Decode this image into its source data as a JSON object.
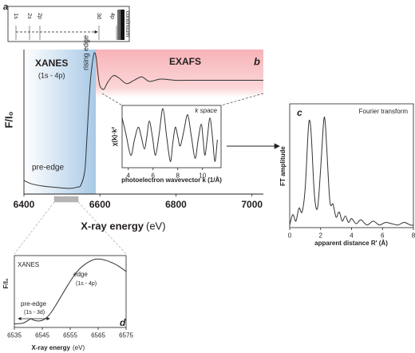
{
  "panel_a": {
    "label": "a",
    "levels": [
      "1s",
      "2s",
      "2p",
      "3d",
      "4p",
      "continuum"
    ]
  },
  "chart_data": [
    {
      "type": "line",
      "panel_label": "b",
      "xlabel": "X-ray energy",
      "xunit": "(eV)",
      "ylabel": "F/I₀",
      "annotations": [
        "XANES",
        "(1s - 4p)",
        "rising edge",
        "pre-edge",
        "EXAFS"
      ],
      "x": [
        6400,
        6420,
        6450,
        6480,
        6520,
        6540,
        6550,
        6560,
        6565,
        6570,
        6575,
        6580,
        6585,
        6590,
        6595,
        6600,
        6610,
        6620,
        6635,
        6650,
        6670,
        6690,
        6710,
        6730,
        6760,
        6800,
        6850,
        6900,
        6950,
        7000,
        7030
      ],
      "values": [
        0.12,
        0.09,
        0.07,
        0.06,
        0.05,
        0.06,
        0.08,
        0.2,
        0.45,
        0.75,
        1.0,
        1.15,
        1.24,
        1.2,
        1.05,
        0.95,
        0.92,
        0.98,
        1.04,
        1.02,
        0.97,
        1.0,
        1.03,
        0.99,
        1.01,
        1.0,
        1.0,
        1.0,
        1.0,
        1.0,
        1.0
      ],
      "color": "#333333",
      "xlim": [
        6400,
        7030
      ],
      "xticks": [
        6400,
        6600,
        6800,
        7000
      ],
      "ylim": [
        0,
        1.27
      ]
    },
    {
      "type": "line",
      "title": "k space",
      "xlabel": "photoelectron wavevector k (1/Å)",
      "ylabel": "χ(k)·k²",
      "x": [
        3.5,
        3.8,
        4.2,
        4.5,
        4.8,
        5.05,
        5.3,
        5.5,
        5.7,
        5.95,
        6.2,
        6.5,
        6.8,
        7.1,
        7.4,
        7.6,
        7.8,
        8.0,
        8.2,
        8.5,
        8.8,
        9.1,
        9.4,
        9.65,
        9.9,
        10.05,
        10.2,
        10.4,
        10.6,
        10.8,
        11.0,
        11.2
      ],
      "values": [
        0.6,
        0.1,
        -0.6,
        -0.1,
        0.3,
        0,
        -0.4,
        0,
        0.5,
        0,
        -0.6,
        0.1,
        0.9,
        0,
        -0.8,
        -0.2,
        0.3,
        0,
        -0.3,
        0.2,
        0.7,
        0,
        -0.7,
        -0.1,
        0.4,
        -0.1,
        -0.6,
        0,
        0.6,
        0,
        -0.8,
        -0.1
      ],
      "color": "#333333",
      "xlim": [
        3.5,
        11.5
      ],
      "xticks": [
        4,
        6,
        8,
        10
      ],
      "ylim": [
        -1,
        1
      ]
    },
    {
      "type": "line",
      "panel_label": "c",
      "title": "Fourier transform",
      "xlabel": "apparent distance R′ (Å)",
      "ylabel": "FT amplitude",
      "x": [
        0,
        0.2,
        0.4,
        0.6,
        0.8,
        1.0,
        1.2,
        1.3,
        1.4,
        1.6,
        1.8,
        2.0,
        2.2,
        2.3,
        2.4,
        2.6,
        2.8,
        3.0,
        3.2,
        3.4,
        3.6,
        3.8,
        4.0,
        4.3,
        4.6,
        5.0,
        5.4,
        5.8,
        6.2,
        6.6,
        7.0,
        7.4,
        7.8,
        8.0
      ],
      "values": [
        0.02,
        0.1,
        0.05,
        0.15,
        0.12,
        0.3,
        0.75,
        0.82,
        0.7,
        0.25,
        0.15,
        0.45,
        0.82,
        0.8,
        0.6,
        0.2,
        0.18,
        0.08,
        0.12,
        0.05,
        0.09,
        0.04,
        0.07,
        0.03,
        0.06,
        0.02,
        0.05,
        0.02,
        0.04,
        0.03,
        0.02,
        0.04,
        0.02,
        0.02
      ],
      "color": "#333333",
      "xlim": [
        0,
        8
      ],
      "xticks": [
        0,
        2,
        4,
        6,
        8
      ],
      "ylim": [
        0,
        0.95
      ]
    },
    {
      "type": "line",
      "panel_label": "d",
      "title": "XANES",
      "xlabel": "X-ray energy",
      "xunit": "(eV)",
      "ylabel": "F/I₀",
      "annotations": [
        "pre-edge",
        "(1s - 3d)",
        "edge",
        "(1s - 4p)"
      ],
      "x": [
        6535,
        6538,
        6540,
        6541,
        6542,
        6544,
        6546,
        6548,
        6550,
        6552,
        6554,
        6556,
        6558,
        6560,
        6562,
        6564,
        6566,
        6568,
        6570,
        6572,
        6575
      ],
      "values": [
        0.05,
        0.06,
        0.1,
        0.12,
        0.1,
        0.09,
        0.12,
        0.2,
        0.32,
        0.45,
        0.58,
        0.7,
        0.8,
        0.87,
        0.92,
        0.95,
        0.95,
        0.93,
        0.9,
        0.86,
        0.78
      ],
      "color": "#333333",
      "xlim": [
        6535,
        6575
      ],
      "xticks": [
        6535,
        6545,
        6555,
        6565,
        6575
      ],
      "ylim": [
        0,
        1
      ]
    }
  ]
}
